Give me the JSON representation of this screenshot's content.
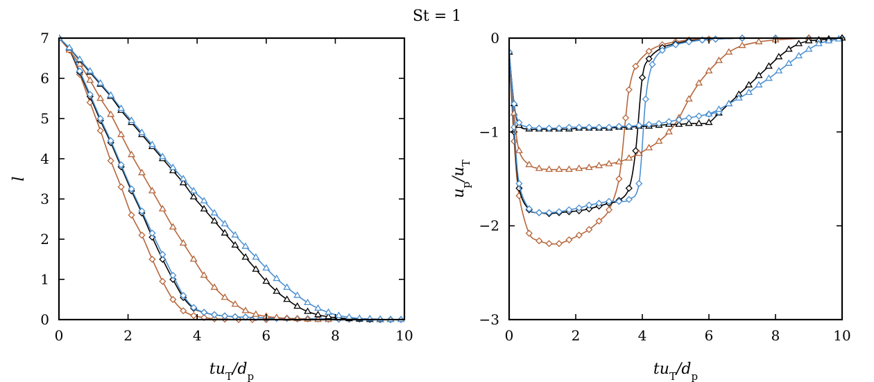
{
  "suptitle": "St = 1",
  "colors": {
    "black": "#000000",
    "orange": "#b5653a",
    "blue": "#4a8fd1"
  },
  "chart_data": [
    {
      "type": "line",
      "panel": "left",
      "xlabel": "tu_T/d_p",
      "ylabel": "l",
      "xlim": [
        0,
        10
      ],
      "ylim": [
        0,
        7
      ],
      "xticks": [
        "0",
        "2",
        "4",
        "6",
        "8",
        "10"
      ],
      "yticks": [
        "0",
        "1",
        "2",
        "3",
        "4",
        "5",
        "6",
        "7"
      ],
      "grid": false,
      "series": [
        {
          "color": "orange",
          "marker": "diamond",
          "x": [
            0,
            0.3,
            0.6,
            0.9,
            1.2,
            1.5,
            1.8,
            2.1,
            2.4,
            2.7,
            3.0,
            3.3,
            3.6,
            3.9,
            4.2,
            4.5,
            4.8,
            5.2,
            5.6,
            6.0
          ],
          "y": [
            7.0,
            6.7,
            6.1,
            5.4,
            4.7,
            3.95,
            3.3,
            2.6,
            2.1,
            1.5,
            0.95,
            0.5,
            0.22,
            0.1,
            0.05,
            0.02,
            0.01,
            0.0,
            0.0,
            0.0
          ]
        },
        {
          "color": "black",
          "marker": "diamond",
          "x": [
            0,
            0.3,
            0.6,
            0.9,
            1.2,
            1.5,
            1.8,
            2.1,
            2.4,
            2.7,
            3.0,
            3.3,
            3.6,
            3.9,
            4.2,
            4.5,
            4.8,
            5.1,
            5.4,
            5.7,
            6.0,
            6.3,
            6.6,
            6.9,
            7.2,
            7.5,
            7.8,
            8.1,
            8.4,
            8.7,
            9.0,
            9.3,
            9.6
          ],
          "y": [
            7.0,
            6.72,
            6.15,
            5.55,
            4.95,
            4.4,
            3.8,
            3.2,
            2.65,
            2.05,
            1.5,
            1.0,
            0.55,
            0.28,
            0.18,
            0.12,
            0.09,
            0.07,
            0.06,
            0.05,
            0.04,
            0.03,
            0.03,
            0.02,
            0.02,
            0.02,
            0.01,
            0.01,
            0.01,
            0.01,
            0.0,
            0.0,
            0.0
          ]
        },
        {
          "color": "blue",
          "marker": "diamond",
          "x": [
            0,
            0.3,
            0.6,
            0.9,
            1.2,
            1.5,
            1.8,
            2.1,
            2.4,
            2.7,
            3.0,
            3.3,
            3.6,
            3.9,
            4.2,
            4.5,
            4.8,
            5.1,
            5.4,
            5.7,
            6.0,
            6.3,
            6.6,
            6.9,
            7.2,
            7.5,
            7.8,
            8.1,
            8.4,
            8.7,
            9.0,
            9.3,
            9.6,
            9.9
          ],
          "y": [
            7.0,
            6.74,
            6.18,
            5.6,
            5.0,
            4.45,
            3.85,
            3.25,
            2.7,
            2.15,
            1.62,
            1.1,
            0.6,
            0.3,
            0.18,
            0.12,
            0.09,
            0.07,
            0.06,
            0.05,
            0.04,
            0.03,
            0.03,
            0.02,
            0.02,
            0.02,
            0.01,
            0.01,
            0.01,
            0.01,
            0.0,
            0.0,
            0.0,
            0.0
          ]
        },
        {
          "color": "orange",
          "marker": "triangle",
          "x": [
            0,
            0.3,
            0.6,
            0.9,
            1.2,
            1.5,
            1.8,
            2.1,
            2.4,
            2.7,
            3.0,
            3.3,
            3.6,
            3.9,
            4.2,
            4.5,
            4.8,
            5.1,
            5.4,
            5.7,
            6.0,
            6.3,
            6.6,
            6.9,
            7.2,
            7.5,
            7.8
          ],
          "y": [
            7.0,
            6.7,
            6.35,
            5.95,
            5.5,
            5.1,
            4.6,
            4.1,
            3.65,
            3.2,
            2.75,
            2.3,
            1.9,
            1.5,
            1.1,
            0.8,
            0.55,
            0.38,
            0.22,
            0.13,
            0.08,
            0.05,
            0.03,
            0.02,
            0.01,
            0.0,
            0.0
          ]
        },
        {
          "color": "black",
          "marker": "triangle",
          "x": [
            0,
            0.3,
            0.6,
            0.9,
            1.2,
            1.5,
            1.8,
            2.1,
            2.4,
            2.7,
            3.0,
            3.3,
            3.6,
            3.9,
            4.2,
            4.5,
            4.8,
            5.1,
            5.4,
            5.7,
            6.0,
            6.3,
            6.6,
            6.9,
            7.2,
            7.5,
            7.8,
            8.1,
            8.4,
            8.7,
            9.0,
            9.3,
            9.6
          ],
          "y": [
            7.0,
            6.75,
            6.45,
            6.15,
            5.85,
            5.55,
            5.2,
            4.9,
            4.6,
            4.3,
            4.0,
            3.7,
            3.4,
            3.05,
            2.75,
            2.45,
            2.15,
            1.85,
            1.55,
            1.25,
            0.95,
            0.7,
            0.5,
            0.33,
            0.2,
            0.12,
            0.07,
            0.04,
            0.02,
            0.01,
            0.0,
            0.0,
            0.0
          ]
        },
        {
          "color": "blue",
          "marker": "triangle",
          "x": [
            0,
            0.3,
            0.6,
            0.9,
            1.2,
            1.5,
            1.8,
            2.1,
            2.4,
            2.7,
            3.0,
            3.3,
            3.6,
            3.9,
            4.2,
            4.5,
            4.8,
            5.1,
            5.4,
            5.7,
            6.0,
            6.3,
            6.6,
            6.9,
            7.2,
            7.5,
            7.8,
            8.1,
            8.4,
            8.7,
            9.0,
            9.3,
            9.6,
            9.9
          ],
          "y": [
            7.0,
            6.76,
            6.47,
            6.18,
            5.88,
            5.58,
            5.25,
            4.95,
            4.65,
            4.35,
            4.05,
            3.78,
            3.5,
            3.2,
            2.95,
            2.65,
            2.38,
            2.1,
            1.82,
            1.55,
            1.28,
            1.02,
            0.8,
            0.6,
            0.42,
            0.28,
            0.18,
            0.1,
            0.06,
            0.03,
            0.02,
            0.01,
            0.0,
            0.0
          ]
        }
      ]
    },
    {
      "type": "line",
      "panel": "right",
      "xlabel": "tu_T/d_p",
      "ylabel": "u_p/u_T",
      "xlim": [
        0,
        10
      ],
      "ylim": [
        -3,
        0
      ],
      "xticks": [
        "0",
        "2",
        "4",
        "6",
        "8",
        "10"
      ],
      "yticks": [
        "0",
        "−1",
        "−2",
        "−3"
      ],
      "grid": false,
      "series": [
        {
          "color": "orange",
          "marker": "diamond",
          "x": [
            0,
            0.15,
            0.3,
            0.6,
            0.9,
            1.2,
            1.5,
            1.8,
            2.1,
            2.4,
            2.7,
            3.0,
            3.3,
            3.5,
            3.6,
            3.8,
            4.2,
            4.6,
            5.0,
            5.4,
            6.0,
            7.0,
            8.0,
            9.0,
            10.0
          ],
          "y": [
            -0.15,
            -1.1,
            -1.68,
            -2.08,
            -2.16,
            -2.19,
            -2.19,
            -2.15,
            -2.1,
            -2.04,
            -1.95,
            -1.83,
            -1.5,
            -0.85,
            -0.55,
            -0.3,
            -0.14,
            -0.07,
            -0.04,
            -0.02,
            -0.01,
            0.0,
            0.0,
            0.0,
            0.0
          ]
        },
        {
          "color": "black",
          "marker": "diamond",
          "x": [
            0,
            0.15,
            0.3,
            0.6,
            0.9,
            1.2,
            1.5,
            1.8,
            2.1,
            2.4,
            2.7,
            3.0,
            3.3,
            3.6,
            3.8,
            4.0,
            4.2,
            4.6,
            5.0,
            5.4,
            5.8,
            6.2,
            7.0,
            8.0,
            9.0,
            10.0
          ],
          "y": [
            -0.15,
            -1.0,
            -1.6,
            -1.83,
            -1.86,
            -1.87,
            -1.86,
            -1.85,
            -1.84,
            -1.82,
            -1.79,
            -1.76,
            -1.73,
            -1.6,
            -1.2,
            -0.42,
            -0.22,
            -0.1,
            -0.06,
            -0.03,
            -0.02,
            -0.01,
            0.0,
            0.0,
            0.0,
            0.0
          ]
        },
        {
          "color": "blue",
          "marker": "diamond",
          "x": [
            0,
            0.15,
            0.3,
            0.6,
            0.9,
            1.2,
            1.5,
            1.8,
            2.1,
            2.4,
            2.7,
            3.0,
            3.3,
            3.6,
            3.9,
            4.1,
            4.3,
            4.6,
            5.0,
            5.4,
            5.8,
            6.2,
            7.0,
            8.0,
            9.0,
            10.0
          ],
          "y": [
            -0.15,
            -0.95,
            -1.55,
            -1.82,
            -1.86,
            -1.86,
            -1.85,
            -1.83,
            -1.81,
            -1.78,
            -1.76,
            -1.74,
            -1.74,
            -1.72,
            -1.55,
            -0.65,
            -0.28,
            -0.13,
            -0.07,
            -0.04,
            -0.02,
            -0.01,
            0.0,
            0.0,
            0.0,
            0.0
          ]
        },
        {
          "color": "orange",
          "marker": "triangle",
          "x": [
            0,
            0.15,
            0.3,
            0.6,
            0.9,
            1.2,
            1.5,
            1.8,
            2.1,
            2.4,
            2.7,
            3.0,
            3.3,
            3.6,
            3.9,
            4.2,
            4.5,
            4.8,
            5.1,
            5.4,
            5.7,
            6.0,
            6.3,
            6.6,
            7.0,
            7.5,
            8.0,
            9.0,
            10.0
          ],
          "y": [
            -0.15,
            -0.8,
            -1.2,
            -1.35,
            -1.39,
            -1.4,
            -1.4,
            -1.4,
            -1.39,
            -1.38,
            -1.36,
            -1.34,
            -1.32,
            -1.28,
            -1.23,
            -1.17,
            -1.1,
            -1.0,
            -0.85,
            -0.65,
            -0.48,
            -0.35,
            -0.24,
            -0.15,
            -0.08,
            -0.04,
            -0.02,
            0.0,
            0.0
          ]
        },
        {
          "color": "black",
          "marker": "triangle",
          "x": [
            0,
            0.15,
            0.3,
            0.6,
            0.9,
            1.2,
            1.5,
            1.8,
            2.1,
            2.4,
            2.7,
            3.0,
            3.3,
            3.6,
            3.9,
            4.2,
            4.5,
            4.8,
            5.1,
            5.4,
            5.7,
            6.0,
            6.3,
            6.6,
            6.9,
            7.2,
            7.5,
            7.8,
            8.1,
            8.4,
            8.7,
            9.0,
            9.3,
            9.6,
            10.0
          ],
          "y": [
            -0.15,
            -0.7,
            -0.93,
            -0.97,
            -0.97,
            -0.97,
            -0.97,
            -0.97,
            -0.96,
            -0.96,
            -0.96,
            -0.96,
            -0.95,
            -0.95,
            -0.94,
            -0.94,
            -0.93,
            -0.92,
            -0.92,
            -0.91,
            -0.91,
            -0.9,
            -0.8,
            -0.7,
            -0.6,
            -0.5,
            -0.4,
            -0.3,
            -0.2,
            -0.12,
            -0.06,
            -0.03,
            -0.02,
            -0.01,
            0.0
          ]
        },
        {
          "color": "blue",
          "marker": "diamond",
          "x": [
            0,
            0.15,
            0.3,
            0.6,
            0.9,
            1.2,
            1.5,
            1.8,
            2.1,
            2.4,
            2.7,
            3.0,
            3.3,
            3.6,
            3.9,
            4.2,
            4.5,
            4.8,
            5.1,
            5.4,
            5.7,
            6.0,
            6.3
          ],
          "y": [
            -0.15,
            -0.7,
            -0.9,
            -0.95,
            -0.96,
            -0.96,
            -0.96,
            -0.95,
            -0.95,
            -0.95,
            -0.95,
            -0.95,
            -0.94,
            -0.94,
            -0.93,
            -0.92,
            -0.91,
            -0.89,
            -0.87,
            -0.85,
            -0.83,
            -0.81,
            -0.79
          ]
        },
        {
          "color": "blue",
          "marker": "triangle",
          "x": [
            6.0,
            6.3,
            6.6,
            6.9,
            7.2,
            7.5,
            7.8,
            8.1,
            8.4,
            8.7,
            9.0,
            9.3,
            9.6,
            9.9
          ],
          "y": [
            -0.81,
            -0.76,
            -0.7,
            -0.64,
            -0.58,
            -0.5,
            -0.43,
            -0.35,
            -0.27,
            -0.19,
            -0.12,
            -0.06,
            -0.03,
            -0.01
          ]
        }
      ]
    }
  ]
}
